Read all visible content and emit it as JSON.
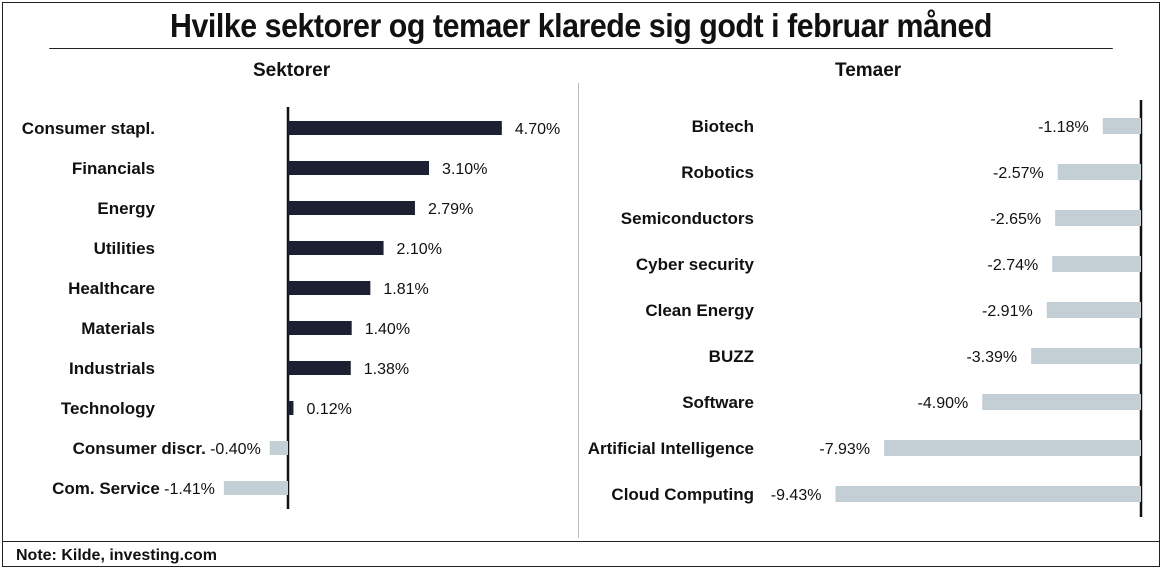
{
  "title": "Hvilke sektorer og temaer klarede sig godt i februar måned",
  "note": "Note: Kilde, investing.com",
  "chart_data": [
    {
      "type": "bar",
      "orientation": "horizontal",
      "title": "Sektorer",
      "categories": [
        "Consumer stapl.",
        "Financials",
        "Energy",
        "Utilities",
        "Healthcare",
        "Materials",
        "Industrials",
        "Technology",
        "Consumer discr.",
        "Com. Service"
      ],
      "values": [
        4.7,
        3.1,
        2.79,
        2.1,
        1.81,
        1.4,
        1.38,
        0.12,
        -0.4,
        -1.41
      ],
      "labels": [
        "4.70%",
        "3.10%",
        "2.79%",
        "2.10%",
        "1.81%",
        "1.40%",
        "1.38%",
        "0.12%",
        "-0.40%",
        "-1.41%"
      ],
      "colors": {
        "positive": "#1b2133",
        "negative": "#c3cfd5"
      }
    },
    {
      "type": "bar",
      "orientation": "horizontal",
      "title": "Temaer",
      "categories": [
        "Biotech",
        "Robotics",
        "Semiconductors",
        "Cyber security",
        "Clean Energy",
        "BUZZ",
        "Software",
        "Artificial Intelligence",
        "Cloud Computing"
      ],
      "values": [
        -1.18,
        -2.57,
        -2.65,
        -2.74,
        -2.91,
        -3.39,
        -4.9,
        -7.93,
        -9.43
      ],
      "labels": [
        "-1.18%",
        "-2.57%",
        "-2.65%",
        "-2.74%",
        "-2.91%",
        "-3.39%",
        "-4.90%",
        "-7.93%",
        "-9.43%"
      ],
      "colors": {
        "negative": "#c3cfd5"
      }
    }
  ]
}
